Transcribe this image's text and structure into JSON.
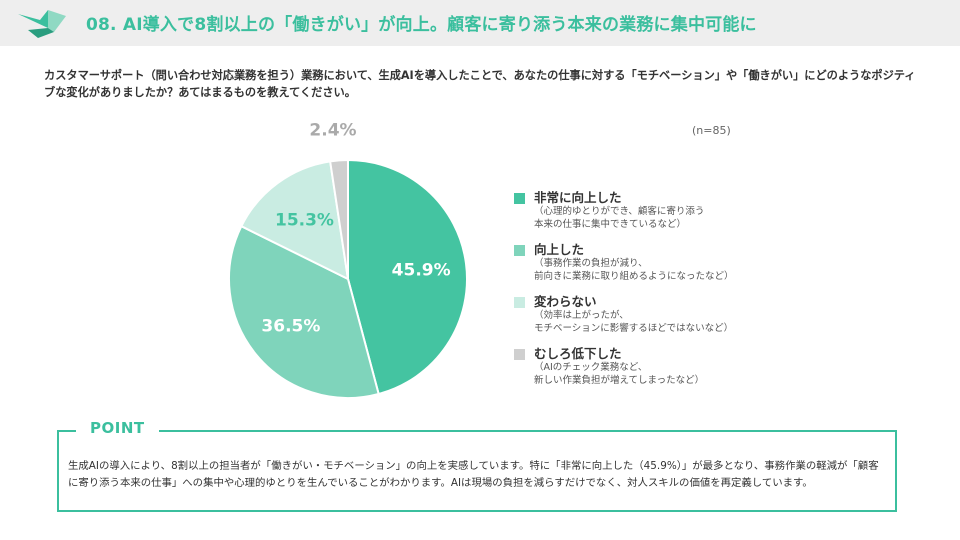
{
  "header": {
    "title": "08. AI導入で8割以上の「働きがい」が向上。顧客に寄り添う本来の業務に集中可能に"
  },
  "question": "カスタマーサポート（問い合わせ対応業務を担う）業務において、生成AIを導入したことで、あなたの仕事に対する「モチベーション」や「働きがい」にどのようなポジティブな変化がありましたか？あてはまるものを教えてください。",
  "sample_size": "(n=85)",
  "chart_data": {
    "type": "pie",
    "categories": [
      "非常に向上した",
      "向上した",
      "変わらない",
      "むしろ低下した"
    ],
    "values": [
      45.9,
      36.5,
      15.3,
      2.4
    ],
    "data_labels": [
      "45.9%",
      "36.5%",
      "15.3%",
      "2.4%"
    ],
    "notes": [
      "（心理的ゆとりができ、顧客に寄り添う\n本来の仕事に集中できているなど）",
      "（事務作業の負担が減り、\n前向きに業務に取り組めるようになったなど）",
      "（効率は上がったが、\nモチベーションに影響するほどではないなど）",
      "（AIのチェック業務など、\n新しい作業負担が増えてしまったなど）"
    ],
    "colors": [
      "#44c4a1",
      "#7fd4bb",
      "#c9ece2",
      "#cfcfcf"
    ],
    "label_colors": [
      "#ffffff",
      "#ffffff",
      "#44c4a1",
      "#aaaaaa"
    ],
    "legend_position": "right"
  },
  "point": {
    "label": "POINT",
    "text": "生成AIの導入により、8割以上の担当者が「働きがい・モチベーション」の向上を実感しています。特に「非常に向上した（45.9%）」が最多となり、事務作業の軽減が「顧客に寄り添う本来の仕事」への集中や心理的ゆとりを生んでいることがわかります。AIは現場の負担を減らすだけでなく、対人スキルの価値を再定義しています。"
  }
}
